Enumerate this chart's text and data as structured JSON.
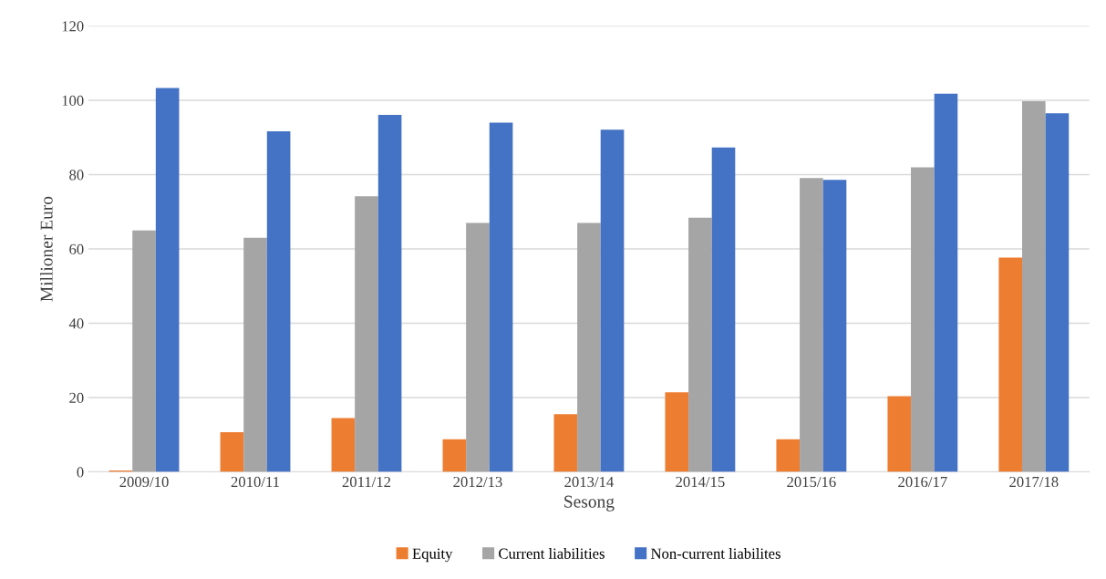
{
  "chart_data": {
    "type": "bar",
    "xlabel": "Sesong",
    "ylabel": "Millioner Euro",
    "categories": [
      "2009/10",
      "2010/11",
      "2011/12",
      "2012/13",
      "2013/14",
      "2014/15",
      "2015/16",
      "2016/17",
      "2017/18"
    ],
    "series": [
      {
        "name": "Equity",
        "color": "#ed7d31",
        "values": [
          0.4,
          10.7,
          14.5,
          8.8,
          15.5,
          21.4,
          8.8,
          20.4,
          57.7
        ]
      },
      {
        "name": "Current liabilities",
        "color": "#a5a5a5",
        "values": [
          65.0,
          63.0,
          74.2,
          67.0,
          67.0,
          68.4,
          79.1,
          82.0,
          99.8
        ]
      },
      {
        "name": "Non-current liabilites",
        "color": "#4472c4",
        "values": [
          103.3,
          91.7,
          96.1,
          94.0,
          92.1,
          87.3,
          78.6,
          101.8,
          96.5
        ]
      }
    ],
    "ylim": [
      0,
      120
    ],
    "yticks": [
      0,
      20,
      40,
      60,
      80,
      100,
      120
    ],
    "grid": "y",
    "legend": "bottom"
  }
}
